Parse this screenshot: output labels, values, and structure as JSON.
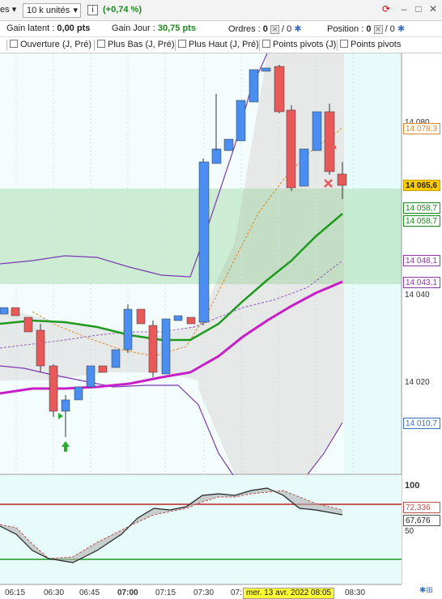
{
  "toolbar": {
    "instrument_partial": "es",
    "units_label": "10 k unités",
    "change_label": "(+0,74 %)"
  },
  "status": {
    "latent_label": "Gain latent :",
    "latent_value": "0,00 pts",
    "day_label": "Gain Jour :",
    "day_value": "30,75 pts",
    "orders_label": "Ordres :",
    "orders_value": "0",
    "orders_slash": "/ 0",
    "position_label": "Position :",
    "position_value": "0",
    "position_slash": "/ 0"
  },
  "indicators": [
    {
      "label": "Ouverture (J, Pré)"
    },
    {
      "label": "Plus Bas (J, Pré)"
    },
    {
      "label": "Plus Haut (J, Pré)"
    },
    {
      "label": "Points pivots (J)"
    },
    {
      "label": "Points pivots"
    }
  ],
  "price_axis": {
    "ticks": [
      "14 080",
      "14 040",
      "14 020"
    ],
    "labels": [
      {
        "text": "14 078,3",
        "color": "#e08a2a"
      },
      {
        "text": "14 065,6",
        "color": "#222222",
        "bg": "#ffcc00"
      },
      {
        "text": "14 058,7",
        "color": "#1a8a1a"
      },
      {
        "text": "14 058,7",
        "color": "#1a8a1a"
      },
      {
        "text": "14 048,1",
        "color": "#8a3aa0"
      },
      {
        "text": "14 043,1",
        "color": "#8a3aa0"
      },
      {
        "text": "14 010,7",
        "color": "#3a6fc4"
      }
    ]
  },
  "oscillator": {
    "ticks": [
      "100",
      "50"
    ],
    "labels": [
      {
        "text": "72,336",
        "color": "#c05050"
      },
      {
        "text": "67,676",
        "color": "#222222"
      }
    ]
  },
  "time_axis": {
    "ticks": [
      "06:15",
      "06:30",
      "06:45",
      "07:00",
      "07:15",
      "07:30",
      "07:",
      "08:30"
    ],
    "cursor_date": "mer. 13 avr. 2022 08:05"
  },
  "colors": {
    "up_candle": "#4a8ef0",
    "down_candle": "#e85a5a",
    "ma_green": "#1e9a1e",
    "ma_magenta": "#c81ec8",
    "band_purple": "#7a3ab0",
    "chart_bg": "#e8fbfb",
    "zone_green": "#5aba5a"
  },
  "icons": [
    "refresh-icon",
    "minimize-icon",
    "maximize-icon",
    "close-icon",
    "gear-icon",
    "up-arrow-signal-icon",
    "cross-signal-icon"
  ]
}
